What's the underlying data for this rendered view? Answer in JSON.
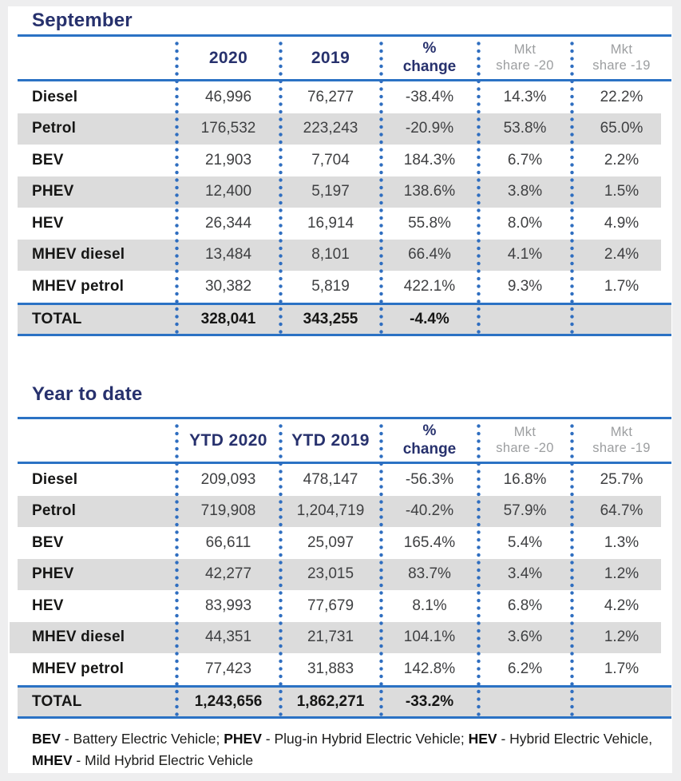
{
  "colors": {
    "outer_background": "#eeeeef",
    "panel_background": "#ffffff",
    "navy_heading": "#27316d",
    "rule_blue": "#2b72c4",
    "dot_blue": "#2f6ec0",
    "stripe_gray": "#dcdcdc",
    "muted_header_gray": "#9c9ea0"
  },
  "tables": [
    {
      "title": "September",
      "header": {
        "col_year1": "2020",
        "col_year2": "2019",
        "pct_top": "%",
        "pct_bottom": "change",
        "mkt20_top": "Mkt",
        "mkt20_bottom": "share -20",
        "mkt19_top": "Mkt",
        "mkt19_bottom": "share -19"
      },
      "rows": [
        {
          "label": "Diesel",
          "v1": "46,996",
          "v2": "76,277",
          "change": "-38.4%",
          "share20": "14.3%",
          "share19": "22.2%"
        },
        {
          "label": "Petrol",
          "v1": "176,532",
          "v2": "223,243",
          "change": "-20.9%",
          "share20": "53.8%",
          "share19": "65.0%"
        },
        {
          "label": "BEV",
          "v1": "21,903",
          "v2": "7,704",
          "change": "184.3%",
          "share20": "6.7%",
          "share19": "2.2%"
        },
        {
          "label": "PHEV",
          "v1": "12,400",
          "v2": "5,197",
          "change": "138.6%",
          "share20": "3.8%",
          "share19": "1.5%"
        },
        {
          "label": "HEV",
          "v1": "26,344",
          "v2": "16,914",
          "change": "55.8%",
          "share20": "8.0%",
          "share19": "4.9%"
        },
        {
          "label": "MHEV diesel",
          "v1": "13,484",
          "v2": "8,101",
          "change": "66.4%",
          "share20": "4.1%",
          "share19": "2.4%"
        },
        {
          "label": "MHEV petrol",
          "v1": "30,382",
          "v2": "5,819",
          "change": "422.1%",
          "share20": "9.3%",
          "share19": "1.7%"
        }
      ],
      "total": {
        "label": "TOTAL",
        "v1": "328,041",
        "v2": "343,255",
        "change": "-4.4%",
        "share20": "",
        "share19": ""
      }
    },
    {
      "title": "Year to date",
      "header": {
        "col_year1": "YTD 2020",
        "col_year2": "YTD 2019",
        "pct_top": "%",
        "pct_bottom": "change",
        "mkt20_top": "Mkt",
        "mkt20_bottom": "share -20",
        "mkt19_top": "Mkt",
        "mkt19_bottom": "share -19"
      },
      "rows": [
        {
          "label": "Diesel",
          "v1": "209,093",
          "v2": "478,147",
          "change": "-56.3%",
          "share20": "16.8%",
          "share19": "25.7%"
        },
        {
          "label": "Petrol",
          "v1": "719,908",
          "v2": "1,204,719",
          "change": "-40.2%",
          "share20": "57.9%",
          "share19": "64.7%"
        },
        {
          "label": "BEV",
          "v1": "66,611",
          "v2": "25,097",
          "change": "165.4%",
          "share20": "5.4%",
          "share19": "1.3%"
        },
        {
          "label": "PHEV",
          "v1": "42,277",
          "v2": "23,015",
          "change": "83.7%",
          "share20": "3.4%",
          "share19": "1.2%"
        },
        {
          "label": "HEV",
          "v1": "83,993",
          "v2": "77,679",
          "change": "8.1%",
          "share20": "6.8%",
          "share19": "4.2%"
        },
        {
          "label": "MHEV diesel",
          "v1": "44,351",
          "v2": "21,731",
          "change": "104.1%",
          "share20": "3.6%",
          "share19": "1.2%"
        },
        {
          "label": "MHEV petrol",
          "v1": "77,423",
          "v2": "31,883",
          "change": "142.8%",
          "share20": "6.2%",
          "share19": "1.7%"
        }
      ],
      "total": {
        "label": "TOTAL",
        "v1": "1,243,656",
        "v2": "1,862,271",
        "change": "-33.2%",
        "share20": "",
        "share19": ""
      }
    }
  ],
  "footnote": {
    "lines": [
      [
        {
          "text": "BEV",
          "bold": true
        },
        {
          "text": " - Battery Electric Vehicle; ",
          "bold": false
        },
        {
          "text": "PHEV",
          "bold": true
        },
        {
          "text": " - Plug-in Hybrid Electric Vehicle; ",
          "bold": false
        },
        {
          "text": "HEV",
          "bold": true
        },
        {
          "text": " - Hybrid Electric Vehicle,",
          "bold": false
        }
      ],
      [
        {
          "text": "MHEV",
          "bold": true
        },
        {
          "text": " - Mild Hybrid Electric Vehicle",
          "bold": false
        }
      ]
    ]
  }
}
